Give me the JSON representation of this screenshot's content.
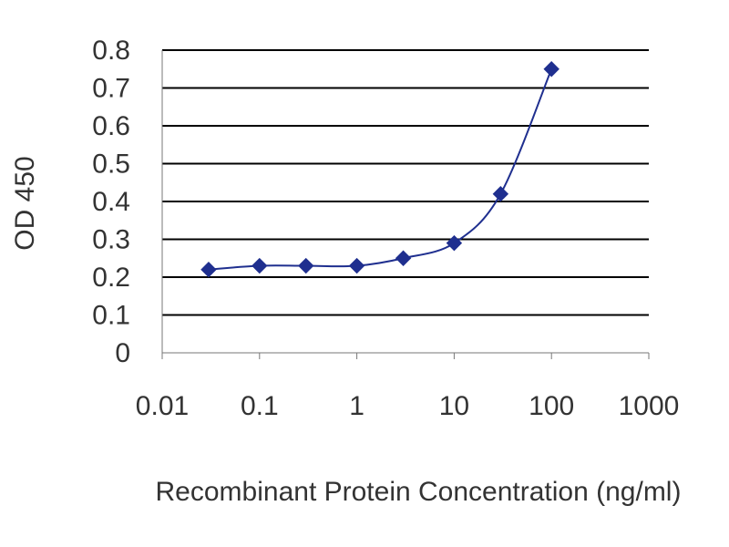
{
  "chart_data": {
    "type": "line",
    "title": "",
    "xlabel": "Recombinant Protein Concentration (ng/ml)",
    "ylabel": "OD 450",
    "x_scale": "log",
    "xlim": [
      0.01,
      1000
    ],
    "ylim": [
      0,
      0.8
    ],
    "x_ticks": [
      "0.01",
      "0.1",
      "1",
      "10",
      "100",
      "1000"
    ],
    "y_ticks": [
      "0",
      "0.1",
      "0.2",
      "0.3",
      "0.4",
      "0.5",
      "0.6",
      "0.7",
      "0.8"
    ],
    "grid": "horizontal",
    "legend": "none",
    "series": [
      {
        "x": [
          0.03,
          0.1,
          0.3,
          1,
          3,
          10,
          30,
          100
        ],
        "y": [
          0.22,
          0.23,
          0.23,
          0.23,
          0.25,
          0.29,
          0.42,
          0.75
        ],
        "color": "#1f2f8f",
        "marker": "diamond"
      }
    ]
  },
  "colors": {
    "plot_background": "#ffffff",
    "grid": "#000000",
    "axis": "#777777",
    "series": "#1f2f8f"
  }
}
